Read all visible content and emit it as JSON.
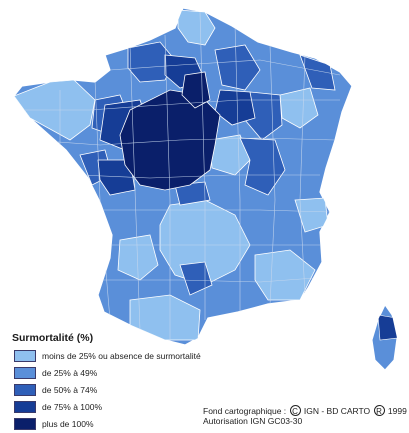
{
  "legend": {
    "title": "Surmortalité (%)",
    "items": [
      {
        "label": "moins de 25% ou absence de surmortalité",
        "color": "#8fc0ef"
      },
      {
        "label": "de 25% à 49%",
        "color": "#5a8fd9"
      },
      {
        "label": "de 50% à 74%",
        "color": "#2f5fb8"
      },
      {
        "label": "de 75% à 100%",
        "color": "#163d96"
      },
      {
        "label": "plus de 100%",
        "color": "#0a1f6a"
      }
    ]
  },
  "source": {
    "line1_prefix": "Fond cartographique : ",
    "copyright_glyph": "C",
    "line1_middle": " IGN - BD CARTO ",
    "registered_glyph": "R",
    "line1_suffix": " 1999",
    "line2": "Autorisation IGN GC03-30"
  },
  "map": {
    "border_color": "#c8d8ee"
  }
}
